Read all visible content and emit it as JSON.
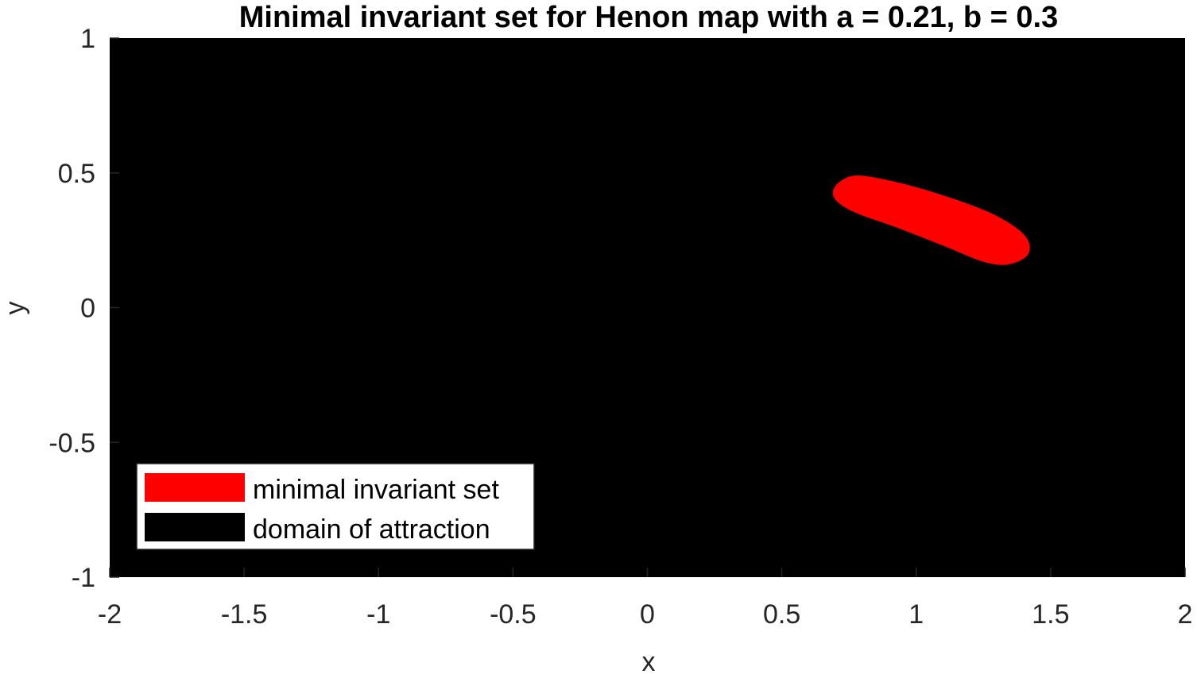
{
  "chart_data": {
    "type": "area",
    "title": "Minimal invariant set for Henon map with a = 0.21, b = 0.3",
    "xlabel": "x",
    "ylabel": "y",
    "xlim": [
      -2,
      2
    ],
    "ylim": [
      -1,
      1
    ],
    "xticks": [
      -2,
      -1.5,
      -1,
      -0.5,
      0,
      0.5,
      1,
      1.5,
      2
    ],
    "xtick_labels": [
      "-2",
      "-1.5",
      "-1",
      "-0.5",
      "0",
      "0.5",
      "1",
      "1.5",
      "2"
    ],
    "yticks": [
      -1,
      -0.5,
      0,
      0.5,
      1
    ],
    "ytick_labels": [
      "-1",
      "-0.5",
      "0",
      "0.5",
      "1"
    ],
    "grid": false,
    "legend_position": "bottom-left",
    "series": [
      {
        "name": "minimal invariant set",
        "color": "#ff0000",
        "outline": [
          [
            0.79,
            0.49
          ],
          [
            0.95,
            0.46
          ],
          [
            1.12,
            0.41
          ],
          [
            1.28,
            0.35
          ],
          [
            1.38,
            0.29
          ],
          [
            1.42,
            0.24
          ],
          [
            1.41,
            0.19
          ],
          [
            1.34,
            0.16
          ],
          [
            1.25,
            0.17
          ],
          [
            1.1,
            0.23
          ],
          [
            0.92,
            0.3
          ],
          [
            0.78,
            0.35
          ],
          [
            0.71,
            0.39
          ],
          [
            0.69,
            0.43
          ],
          [
            0.72,
            0.47
          ]
        ]
      },
      {
        "name": "domain of attraction",
        "color": "#000000",
        "outline": [
          [
            -2,
            -1
          ],
          [
            2,
            -1
          ],
          [
            2,
            1
          ],
          [
            -2,
            1
          ]
        ]
      }
    ]
  }
}
